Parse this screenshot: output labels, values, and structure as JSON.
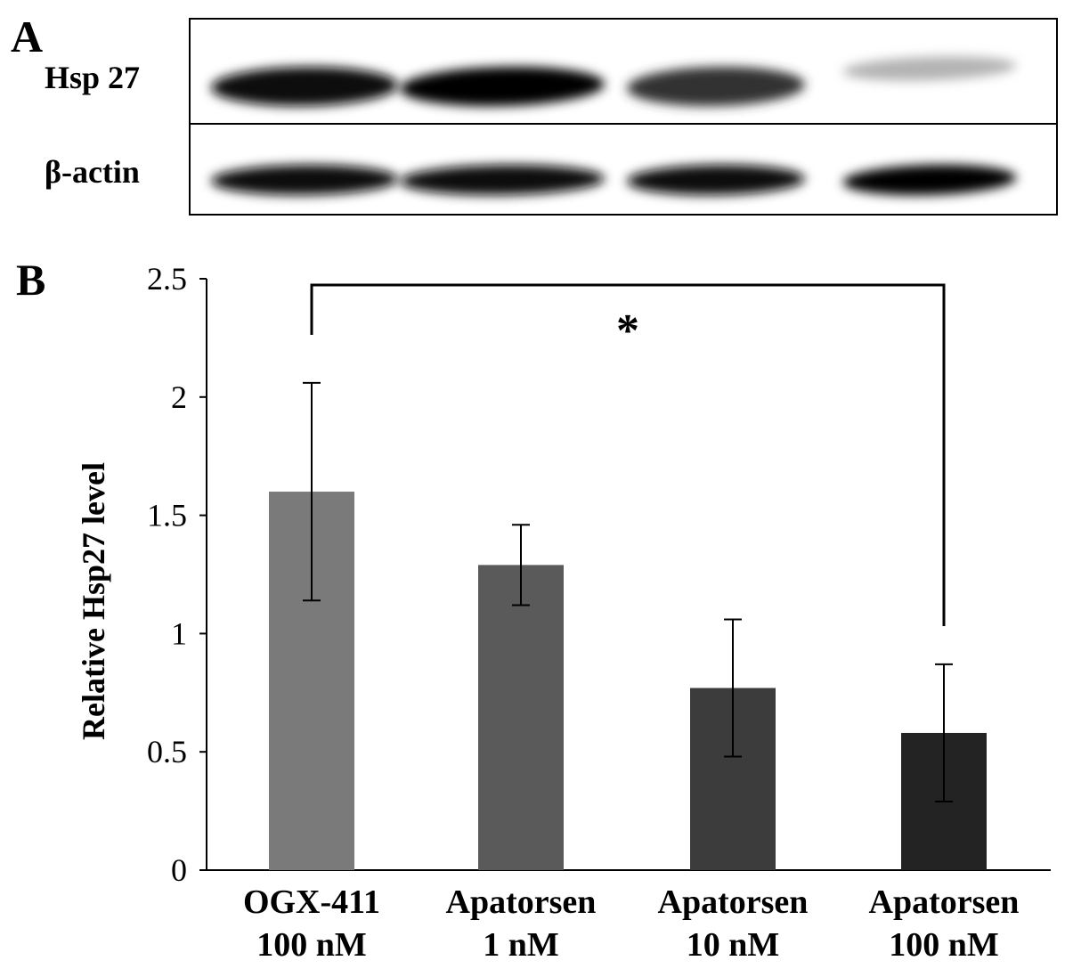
{
  "panel_a": {
    "letter": "A",
    "rows": [
      "Hsp 27",
      "β-actin"
    ],
    "lanes": 4,
    "band_intensity": {
      "Hsp 27": [
        0.95,
        1.0,
        0.8,
        0.3
      ],
      "β-actin": [
        0.95,
        0.95,
        0.95,
        1.0
      ]
    }
  },
  "panel_b": {
    "letter": "B"
  },
  "chart_data": {
    "type": "bar",
    "categories": [
      [
        "OGX-411",
        "100 nM"
      ],
      [
        "Apatorsen",
        "1 nM"
      ],
      [
        "Apatorsen",
        "10 nM"
      ],
      [
        "Apatorsen",
        "100 nM"
      ]
    ],
    "values": [
      1.6,
      1.29,
      0.77,
      0.58
    ],
    "error": [
      0.46,
      0.17,
      0.29,
      0.29
    ],
    "bar_colors": [
      "#7a7a7a",
      "#5a5a5a",
      "#3c3c3c",
      "#232323"
    ],
    "ylabel": "Relative Hsp27 level",
    "ylim": [
      0,
      2.5
    ],
    "yticks": [
      "0",
      "0.5",
      "1",
      "1.5",
      "2",
      "2.5"
    ],
    "ytick_values": [
      0,
      0.5,
      1,
      1.5,
      2,
      2.5
    ],
    "grid": false,
    "significance": {
      "from": 0,
      "to": 3,
      "label": "*"
    }
  }
}
